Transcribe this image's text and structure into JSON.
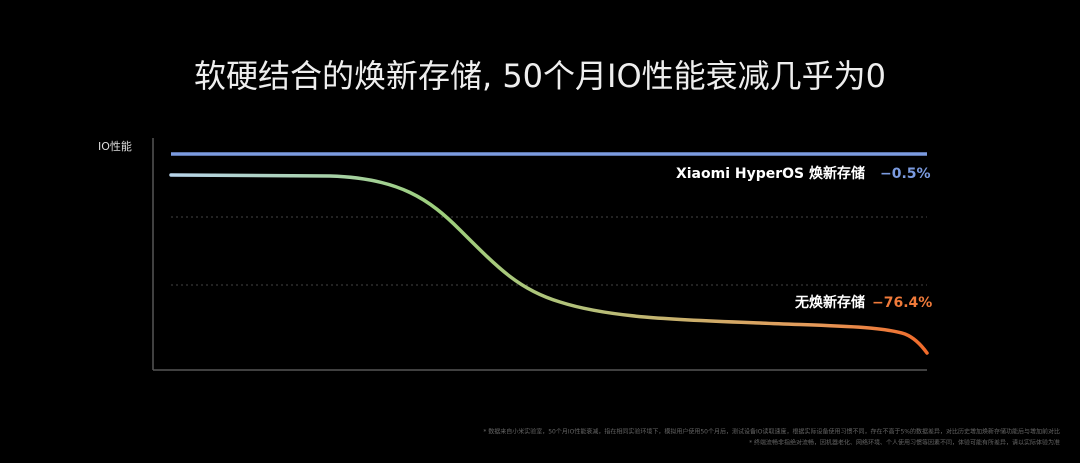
{
  "title": "软硬结合的焕新存储, 50个月IO性能衰减几乎为0",
  "axis_label": "IO性能",
  "legend": [
    {
      "name": "Xiaomi HyperOS 焕新存储",
      "change": "−0.5%"
    },
    {
      "name": "无焕新存储",
      "change": "−76.4%"
    }
  ],
  "footnotes": [
    "* 数据来自小米实验室，50个月IO性能衰减，指在相同实验环境下，模拟用户使用50个月后，测试设备IO读取速度，根据实际设备使用习惯不同，存在不高于5%的数据差异，对比历史增加焕新存储功能后与增加前对比",
    "* 终端流畅非指绝对流畅，因机器老化、网络环境、个人使用习惯等因素不同，体验可能有所差异，请以实际体验为准"
  ]
}
